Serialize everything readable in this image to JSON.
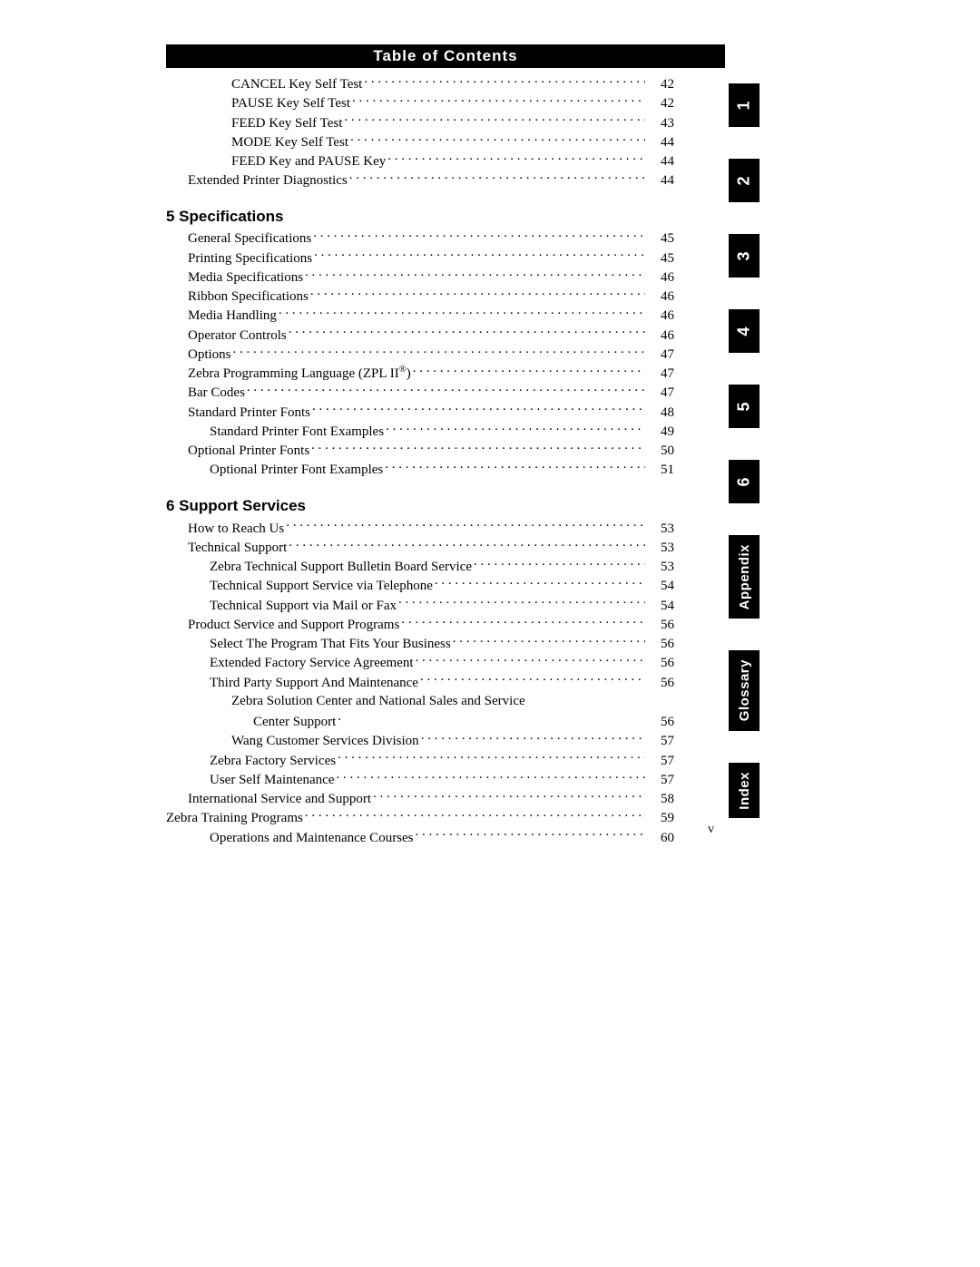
{
  "header": {
    "title": "Table of Contents"
  },
  "page_number": "v",
  "colors": {
    "band_bg": "#000000",
    "band_fg": "#ffffff",
    "page_bg": "#ffffff",
    "text": "#000000"
  },
  "sections": [
    {
      "heading": null,
      "entries": [
        {
          "indent": 3,
          "label": "CANCEL Key Self Test",
          "page": "42"
        },
        {
          "indent": 3,
          "label": "PAUSE Key Self Test",
          "page": "42"
        },
        {
          "indent": 3,
          "label": "FEED Key Self Test",
          "page": "43"
        },
        {
          "indent": 3,
          "label": "MODE Key Self Test",
          "page": "44"
        },
        {
          "indent": 3,
          "label": "FEED Key and PAUSE Key",
          "page": "44"
        },
        {
          "indent": 1,
          "label": "Extended Printer Diagnostics",
          "page": "44"
        }
      ]
    },
    {
      "heading": "5 Specifications",
      "entries": [
        {
          "indent": 1,
          "label": "General Specifications",
          "page": "45"
        },
        {
          "indent": 1,
          "label": "Printing Specifications",
          "page": "45"
        },
        {
          "indent": 1,
          "label": "Media Specifications",
          "page": "46"
        },
        {
          "indent": 1,
          "label": "Ribbon Specifications",
          "page": "46"
        },
        {
          "indent": 1,
          "label": "Media Handling",
          "page": "46"
        },
        {
          "indent": 1,
          "label": "Operator Controls",
          "page": "46"
        },
        {
          "indent": 1,
          "label": "Options",
          "page": "47"
        },
        {
          "indent": 1,
          "label": "Zebra Programming Language (ZPL II",
          "reg_after": true,
          "suffix": ")",
          "page": "47"
        },
        {
          "indent": 1,
          "label": "Bar Codes",
          "page": "47"
        },
        {
          "indent": 1,
          "label": "Standard Printer Fonts",
          "page": "48"
        },
        {
          "indent": 2,
          "label": "Standard Printer Font Examples",
          "page": "49"
        },
        {
          "indent": 1,
          "label": "Optional Printer Fonts",
          "page": "50"
        },
        {
          "indent": 2,
          "label": "Optional Printer Font Examples",
          "page": "51"
        }
      ]
    },
    {
      "heading": "6 Support Services",
      "entries": [
        {
          "indent": 1,
          "label": "How to Reach Us",
          "page": "53"
        },
        {
          "indent": 1,
          "label": "Technical Support",
          "page": "53"
        },
        {
          "indent": 2,
          "label": "Zebra Technical Support Bulletin Board Service",
          "page": "53"
        },
        {
          "indent": 2,
          "label": "Technical Support Service via Telephone",
          "page": "54"
        },
        {
          "indent": 2,
          "label": "Technical Support via Mail or Fax",
          "page": "54"
        },
        {
          "indent": 1,
          "label": "Product Service and Support Programs",
          "page": "56"
        },
        {
          "indent": 2,
          "label": "Select The Program That Fits Your Business",
          "page": "56"
        },
        {
          "indent": 2,
          "label": "Extended Factory Service Agreement",
          "page": "56"
        },
        {
          "indent": 2,
          "label": "Third Party Support And Maintenance",
          "page": "56"
        },
        {
          "indent": 3,
          "wrap": true,
          "label1": "Zebra Solution Center and National Sales and Service",
          "label2": "Center Support",
          "page": "56"
        },
        {
          "indent": 3,
          "label": "Wang Customer Services Division",
          "page": "57"
        },
        {
          "indent": 2,
          "label": "Zebra Factory Services",
          "page": "57"
        },
        {
          "indent": 2,
          "label": "User Self Maintenance",
          "page": "57"
        },
        {
          "indent": 1,
          "label": "International Service and Support",
          "page": "58"
        },
        {
          "indent": 0,
          "label": "Zebra Training Programs",
          "page": "59"
        },
        {
          "indent": 2,
          "label": "Operations and Maintenance Courses",
          "page": "60"
        }
      ]
    }
  ],
  "thumb_tabs": [
    {
      "label": "1",
      "kind": "short"
    },
    {
      "label": "2",
      "kind": "short"
    },
    {
      "label": "3",
      "kind": "short"
    },
    {
      "label": "4",
      "kind": "short"
    },
    {
      "label": "5",
      "kind": "short"
    },
    {
      "label": "6",
      "kind": "short"
    },
    {
      "label": "Appendix",
      "kind": "long"
    },
    {
      "label": "Glossary",
      "kind": "long"
    },
    {
      "label": "Index",
      "kind": "long"
    }
  ]
}
